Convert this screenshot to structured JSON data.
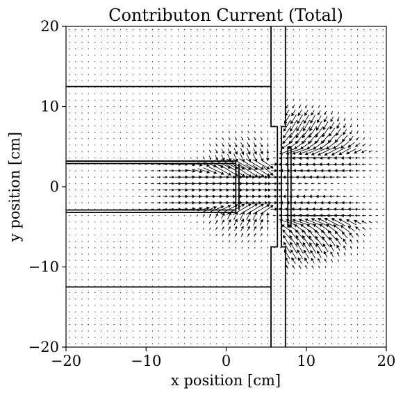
{
  "chart_data": {
    "type": "quiver",
    "title": "Contributon Current (Total)",
    "xlabel": "x position [cm]",
    "ylabel": "y position [cm]",
    "xlim": [
      -20,
      20
    ],
    "ylim": [
      -20,
      20
    ],
    "x_ticks": [
      -20,
      -10,
      0,
      10,
      20
    ],
    "y_ticks": [
      -20,
      -10,
      0,
      10,
      20
    ],
    "x_tick_labels": [
      "−20",
      "−10",
      "0",
      "10",
      "20"
    ],
    "y_tick_labels": [
      "−20",
      "−10",
      "0",
      "10",
      "20"
    ],
    "grid": false,
    "vector_grid": {
      "x_start": -20,
      "x_end": 20,
      "y_start": -20,
      "y_end": 20,
      "step": 0.8
    },
    "arrow_color": "#000000",
    "geometry_color": "#000000",
    "geometry": [
      {
        "name": "outer-duct-top",
        "points": [
          [
            -20,
            12.5
          ],
          [
            5.6,
            12.5
          ]
        ]
      },
      {
        "name": "outer-duct-bottom",
        "points": [
          [
            -20,
            -12.5
          ],
          [
            5.6,
            -12.5
          ]
        ]
      },
      {
        "name": "duct-wall-top-outer",
        "points": [
          [
            -20,
            3.2
          ],
          [
            1.2,
            3.2
          ]
        ]
      },
      {
        "name": "duct-wall-top-inner",
        "points": [
          [
            -20,
            2.9
          ],
          [
            1.2,
            2.9
          ]
        ]
      },
      {
        "name": "duct-wall-bottom-outer",
        "points": [
          [
            -20,
            -3.2
          ],
          [
            1.2,
            -3.2
          ]
        ]
      },
      {
        "name": "duct-wall-bottom-inner",
        "points": [
          [
            -20,
            -2.9
          ],
          [
            1.2,
            -2.9
          ]
        ]
      },
      {
        "name": "duct-end-plate",
        "points": [
          [
            1.2,
            3.2
          ],
          [
            1.2,
            -3.2
          ]
        ]
      },
      {
        "name": "duct-end-plate-inner",
        "points": [
          [
            1.6,
            2.9
          ],
          [
            1.6,
            -2.9
          ]
        ]
      },
      {
        "name": "slab-left-upper",
        "points": [
          [
            5.6,
            20
          ],
          [
            5.6,
            7.5
          ],
          [
            6.4,
            7.5
          ],
          [
            6.4,
            -7.5
          ],
          [
            5.6,
            -7.5
          ],
          [
            5.6,
            -20
          ]
        ]
      },
      {
        "name": "slab-right-upper",
        "points": [
          [
            7.4,
            20
          ],
          [
            7.4,
            7.5
          ],
          [
            6.9,
            7.5
          ],
          [
            6.9,
            -7.5
          ],
          [
            7.4,
            -7.5
          ],
          [
            7.4,
            -20
          ]
        ]
      },
      {
        "name": "detector-plate",
        "points": [
          [
            7.7,
            5
          ],
          [
            8.1,
            5
          ],
          [
            8.1,
            -5
          ],
          [
            7.7,
            -5
          ],
          [
            7.7,
            5
          ]
        ]
      }
    ]
  }
}
